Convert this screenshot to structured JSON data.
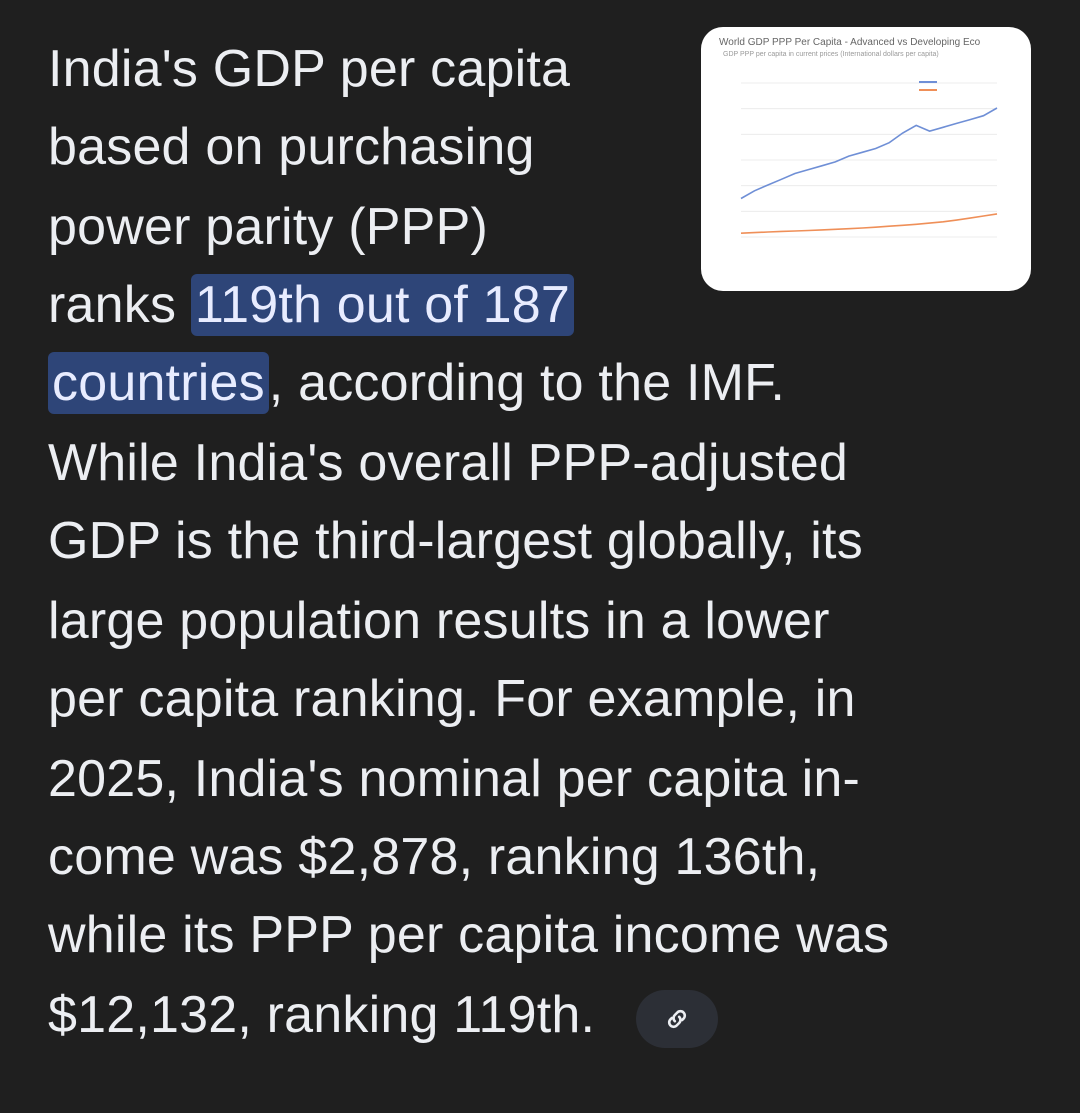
{
  "paragraph": {
    "line1": "India's GDP per capita",
    "line2": "based on purchasing",
    "line3": "power parity (PPP)",
    "line4_prefix": "ranks ",
    "line4_highlight": "119th out of 187",
    "line5_highlight": "countries",
    "line5_suffix": ", according to the IMF.",
    "line6": "While India's overall PPP-adjusted",
    "line7": "GDP is the third-largest globally, its",
    "line8": "large population results in a lower",
    "line9": "per capita ranking. For example, in",
    "line10": "2025, India's nominal per capita in-",
    "line11": "come was $2,878, ranking 136th,",
    "line12": "while its PPP per capita income was",
    "line13": "$12,132, ranking 119th."
  },
  "thumbnail": {
    "title": "World GDP PPP Per Capita - Advanced vs Developing Eco",
    "subtitle": "GDP PPP per capita in current prices (International dollars per capita)"
  },
  "chart_data": {
    "type": "line",
    "title": "World GDP PPP Per Capita - Advanced vs Developing Eco",
    "series": [
      {
        "name": "",
        "color": "#6f8fd6",
        "values": [
          20,
          24,
          27,
          30,
          33,
          35,
          37,
          39,
          42,
          44,
          46,
          49,
          54,
          58,
          55,
          57,
          59,
          61,
          63,
          67
        ]
      },
      {
        "name": "",
        "color": "#ef8f58",
        "values": [
          2,
          2.3,
          2.6,
          2.9,
          3.1,
          3.4,
          3.7,
          4.0,
          4.3,
          4.7,
          5.1,
          5.6,
          6.1,
          6.6,
          7.2,
          7.9,
          8.8,
          9.8,
          10.9,
          12
        ]
      }
    ],
    "ylim": [
      0,
      80
    ]
  },
  "colors": {
    "background": "#1f1f1f",
    "text": "#eceef2",
    "highlight_bg": "#2e4578",
    "chip_bg": "#2c2f36"
  },
  "icons": {
    "link": "link-icon"
  }
}
